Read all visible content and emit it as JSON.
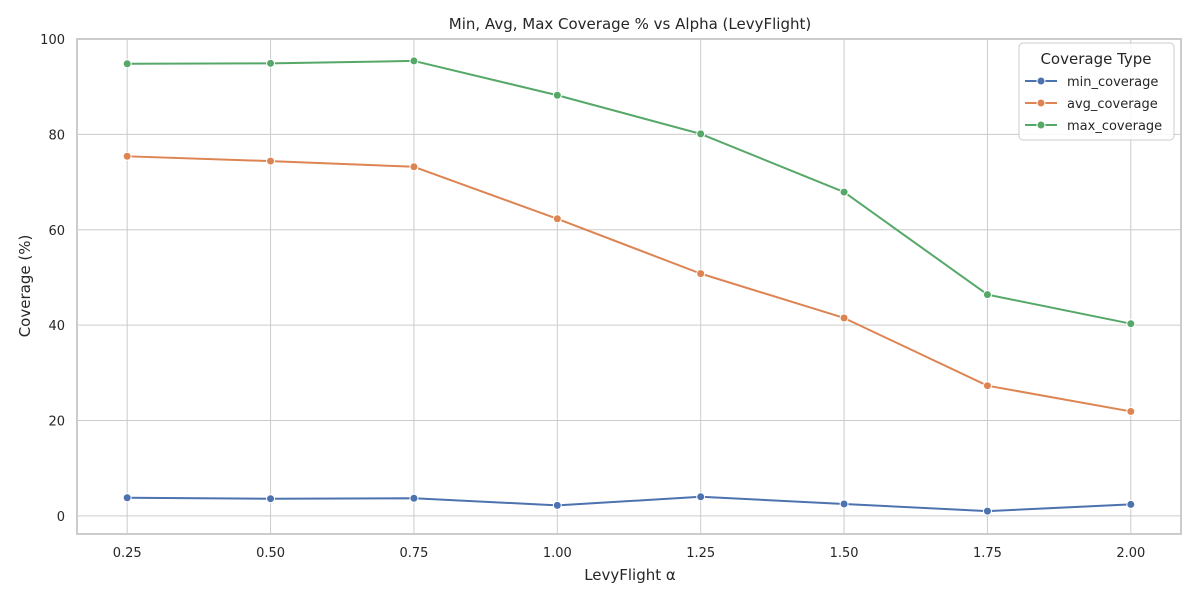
{
  "chart_data": {
    "type": "line",
    "title": "Min, Avg, Max Coverage % vs Alpha (LevyFlight)",
    "xlabel": "LevyFlight α",
    "ylabel": "Coverage (%)",
    "x": [
      0.25,
      0.5,
      0.75,
      1.0,
      1.25,
      1.5,
      1.75,
      2.0
    ],
    "x_tick_labels": [
      "0.25",
      "0.50",
      "0.75",
      "1.00",
      "1.25",
      "1.50",
      "1.75",
      "2.00"
    ],
    "y_ticks": [
      0,
      20,
      40,
      60,
      80,
      100
    ],
    "y_tick_labels": [
      "0",
      "20",
      "40",
      "60",
      "80",
      "100"
    ],
    "xlim": [
      0.1625,
      2.0875
    ],
    "ylim": [
      -3.8,
      100
    ],
    "grid": true,
    "legend": {
      "title": "Coverage Type",
      "placement": "top-right"
    },
    "series": [
      {
        "name": "min_coverage",
        "color": "#4c72b0",
        "values": [
          3.8,
          3.6,
          3.7,
          2.2,
          4.0,
          2.5,
          1.0,
          2.4
        ]
      },
      {
        "name": "avg_coverage",
        "color": "#dd8452",
        "values": [
          75.4,
          74.4,
          73.2,
          62.3,
          50.8,
          41.5,
          27.3,
          21.9
        ]
      },
      {
        "name": "max_coverage",
        "color": "#55a868",
        "values": [
          94.8,
          94.9,
          95.4,
          88.2,
          80.1,
          67.9,
          46.4,
          40.3
        ]
      }
    ]
  }
}
